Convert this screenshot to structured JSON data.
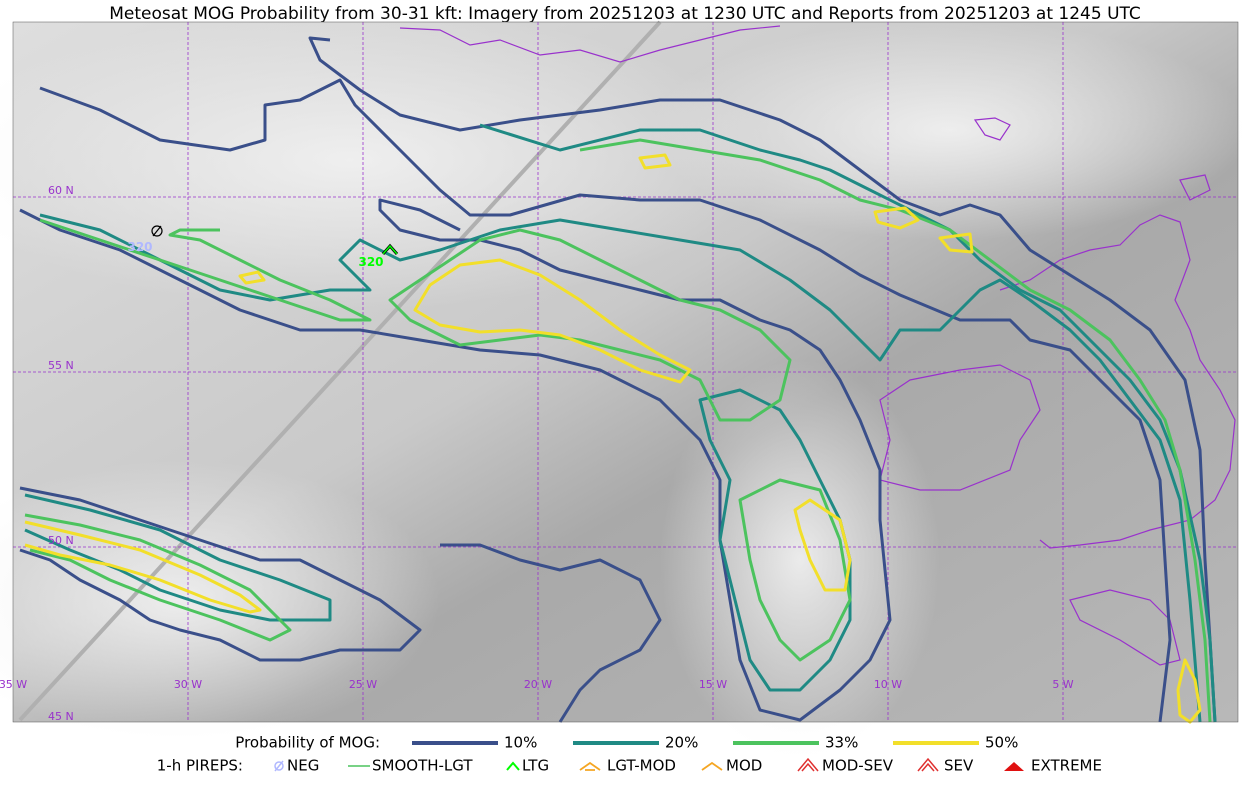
{
  "title": "Meteosat MOG Probability from 30-31 kft: Imagery from 20251203 at 1230 UTC and Reports from 20251203 at 1245 UTC",
  "lat_labels": [
    "60 N",
    "55 N",
    "50 N",
    "45 N"
  ],
  "lon_labels": [
    "35 W",
    "30 W",
    "25 W",
    "20 W",
    "15 W",
    "10 W",
    "5 W"
  ],
  "pireps": [
    {
      "label": "320"
    },
    {
      "label": "320"
    }
  ],
  "legend": {
    "probability": {
      "heading": "Probability of MOG:",
      "levels": [
        "10%",
        "20%",
        "33%",
        "50%"
      ]
    },
    "pireps": {
      "heading": "1-h PIREPS:",
      "types": [
        "NEG",
        "SMOOTH-LGT",
        "LTG",
        "LGT-MOD",
        "MOD",
        "MOD-SEV",
        "SEV",
        "EXTREME"
      ]
    }
  }
}
